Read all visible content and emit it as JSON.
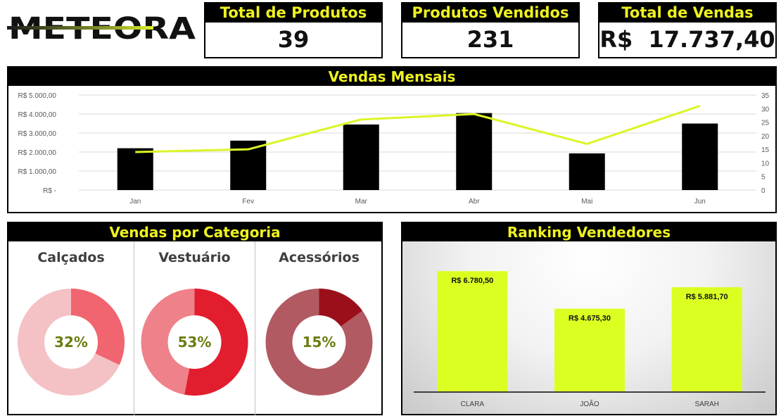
{
  "brand": {
    "logo_text": "METEORA"
  },
  "kpis": [
    {
      "label": "Total de Produtos",
      "value": "39"
    },
    {
      "label": "Produtos Vendidos",
      "value": "231"
    },
    {
      "label": "Total de Vendas",
      "value": "R$  17.737,40"
    }
  ],
  "monthly": {
    "title": "Vendas Mensais",
    "chart_data": {
      "type": "bar",
      "categories": [
        "Jan",
        "Fev",
        "Mar",
        "Abr",
        "Mai",
        "Jun"
      ],
      "series": [
        {
          "kind": "bar",
          "axis": "left",
          "values": [
            2200,
            2600,
            3450,
            4050,
            1930,
            3500
          ],
          "color": "#000000"
        },
        {
          "kind": "line",
          "axis": "right",
          "values": [
            14,
            15,
            26,
            28,
            17,
            31
          ],
          "color": "#dcf526"
        }
      ],
      "y_left": {
        "min": 0,
        "max": 5000,
        "ticks": [
          "R$ -",
          "R$ 1.000,00",
          "R$ 2.000,00",
          "R$ 3.000,00",
          "R$ 4.000,00",
          "R$ 5.000,00"
        ]
      },
      "y_right": {
        "min": 0,
        "max": 35,
        "ticks": [
          "0",
          "5",
          "10",
          "15",
          "20",
          "25",
          "30",
          "35"
        ]
      },
      "grid": true
    }
  },
  "category": {
    "title": "Vendas por Categoria",
    "chart_data": [
      {
        "type": "pie",
        "label": "Calçados",
        "value": 32,
        "display": "32%",
        "color": "#f0656f",
        "rest_color": "#f4c1c4"
      },
      {
        "type": "pie",
        "label": "Vestuário",
        "value": 53,
        "display": "53%",
        "color": "#e21d2e",
        "rest_color": "#ee8189"
      },
      {
        "type": "pie",
        "label": "Acessórios",
        "value": 15,
        "display": "15%",
        "color": "#9b0f1a",
        "rest_color": "#b25a62"
      }
    ],
    "pct_color": "#6b7d10"
  },
  "ranking": {
    "title": "Ranking Vendedores",
    "chart_data": {
      "type": "bar",
      "categories": [
        "CLARA",
        "JOÃO",
        "SARAH"
      ],
      "values": [
        6780.5,
        4675.3,
        5881.7
      ],
      "labels": [
        "R$ 6.780,50",
        "R$ 4.675,30",
        "R$ 5.881,70"
      ],
      "color": "#dcff22",
      "ylim": [
        0,
        7500
      ]
    }
  },
  "colors": {
    "accent": "#eef21f",
    "dark": "#000000"
  }
}
